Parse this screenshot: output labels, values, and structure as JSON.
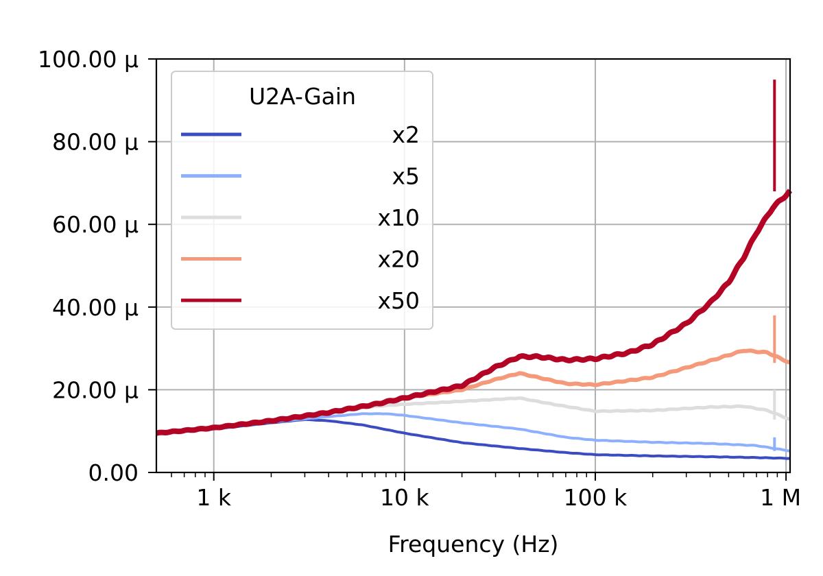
{
  "chart_data": {
    "type": "line",
    "xlabel": "Frequency (Hz)",
    "ylabel": "",
    "x_scale": "log",
    "xlim": [
      500,
      1050000
    ],
    "ylim": [
      0,
      0.0001
    ],
    "x_ticks": [
      {
        "value": 1000,
        "label": "1 k"
      },
      {
        "value": 10000,
        "label": "10 k"
      },
      {
        "value": 100000,
        "label": "100 k"
      },
      {
        "value": 1000000,
        "label": "1 M"
      }
    ],
    "y_ticks": [
      {
        "value": 0,
        "label": "0.00"
      },
      {
        "value": 2e-05,
        "label": "20.00 μ"
      },
      {
        "value": 4e-05,
        "label": "40.00 μ"
      },
      {
        "value": 6e-05,
        "label": "60.00 μ"
      },
      {
        "value": 8e-05,
        "label": "80.00 μ"
      },
      {
        "value": 0.0001,
        "label": "100.00 μ"
      }
    ],
    "grid": true,
    "legend": {
      "title": "U2A-Gain",
      "position": "top-left"
    },
    "series": [
      {
        "name": "x2",
        "color": "#3b4cc0",
        "points": [
          [
            500,
            9.5e-06
          ],
          [
            1000,
            1.05e-05
          ],
          [
            2000,
            1.2e-05
          ],
          [
            3000,
            1.28e-05
          ],
          [
            4000,
            1.25e-05
          ],
          [
            6000,
            1.15e-05
          ],
          [
            10000,
            9.5e-06
          ],
          [
            20000,
            7.2e-06
          ],
          [
            40000,
            5.8e-06
          ],
          [
            70000,
            4.8e-06
          ],
          [
            100000,
            4.3e-06
          ],
          [
            200000,
            4e-06
          ],
          [
            400000,
            3.8e-06
          ],
          [
            700000,
            3.6e-06
          ],
          [
            1050000,
            3.4e-06
          ]
        ]
      },
      {
        "name": "x5",
        "color": "#8db0fe",
        "points": [
          [
            500,
            9.5e-06
          ],
          [
            1000,
            1.08e-05
          ],
          [
            2000,
            1.22e-05
          ],
          [
            4000,
            1.35e-05
          ],
          [
            6000,
            1.42e-05
          ],
          [
            8000,
            1.42e-05
          ],
          [
            10000,
            1.38e-05
          ],
          [
            20000,
            1.2e-05
          ],
          [
            40000,
            1.05e-05
          ],
          [
            70000,
            8.5e-06
          ],
          [
            100000,
            7.8e-06
          ],
          [
            200000,
            7.3e-06
          ],
          [
            400000,
            7e-06
          ],
          [
            700000,
            6.5e-06
          ],
          [
            1050000,
            5.2e-06
          ]
        ]
      },
      {
        "name": "x10",
        "color": "#dddddd",
        "points": [
          [
            500,
            9.5e-06
          ],
          [
            1000,
            1.08e-05
          ],
          [
            2000,
            1.25e-05
          ],
          [
            4000,
            1.45e-05
          ],
          [
            7000,
            1.6e-05
          ],
          [
            10000,
            1.65e-05
          ],
          [
            20000,
            1.72e-05
          ],
          [
            40000,
            1.8e-05
          ],
          [
            60000,
            1.65e-05
          ],
          [
            100000,
            1.48e-05
          ],
          [
            200000,
            1.5e-05
          ],
          [
            400000,
            1.58e-05
          ],
          [
            600000,
            1.6e-05
          ],
          [
            800000,
            1.5e-05
          ],
          [
            1050000,
            1.28e-05
          ]
        ]
      },
      {
        "name": "x20",
        "color": "#f49a7b",
        "points": [
          [
            500,
            9.5e-06
          ],
          [
            1000,
            1.08e-05
          ],
          [
            2000,
            1.25e-05
          ],
          [
            4000,
            1.45e-05
          ],
          [
            7000,
            1.65e-05
          ],
          [
            10000,
            1.8e-05
          ],
          [
            20000,
            2e-05
          ],
          [
            30000,
            2.25e-05
          ],
          [
            40000,
            2.4e-05
          ],
          [
            50000,
            2.3e-05
          ],
          [
            70000,
            2.15e-05
          ],
          [
            100000,
            2.12e-05
          ],
          [
            200000,
            2.3e-05
          ],
          [
            400000,
            2.7e-05
          ],
          [
            600000,
            2.95e-05
          ],
          [
            800000,
            2.9e-05
          ],
          [
            1050000,
            2.65e-05
          ]
        ]
      },
      {
        "name": "x50",
        "color": "#b40426",
        "points": [
          [
            500,
            9.5e-06
          ],
          [
            1000,
            1.08e-05
          ],
          [
            2000,
            1.25e-05
          ],
          [
            4000,
            1.45e-05
          ],
          [
            7000,
            1.65e-05
          ],
          [
            10000,
            1.8e-05
          ],
          [
            20000,
            2.1e-05
          ],
          [
            30000,
            2.55e-05
          ],
          [
            40000,
            2.8e-05
          ],
          [
            50000,
            2.8e-05
          ],
          [
            70000,
            2.72e-05
          ],
          [
            100000,
            2.75e-05
          ],
          [
            150000,
            2.9e-05
          ],
          [
            200000,
            3.1e-05
          ],
          [
            300000,
            3.6e-05
          ],
          [
            400000,
            4.1e-05
          ],
          [
            500000,
            4.6e-05
          ],
          [
            600000,
            5.2e-05
          ],
          [
            700000,
            5.8e-05
          ],
          [
            850000,
            6.4e-05
          ],
          [
            1050000,
            6.8e-05
          ]
        ]
      }
    ],
    "annotations": [
      {
        "series": "x50",
        "x": 870000,
        "y": 9.5e-05
      },
      {
        "series": "x20",
        "x": 870000,
        "y": 3.8e-05
      },
      {
        "series": "x10",
        "x": 870000,
        "y": 2e-05
      },
      {
        "series": "x5",
        "x": 870000,
        "y": 8.5e-06
      }
    ]
  }
}
